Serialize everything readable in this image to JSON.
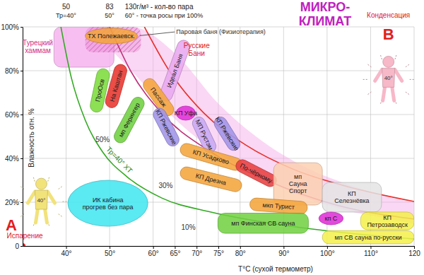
{
  "chart_data": {
    "type": "zone",
    "title": "МИКРО-\nКЛИМАТ",
    "x_label": "T°C (сухой термометр)",
    "y_label": "Влажность отн. %",
    "xlim": [
      30,
      120
    ],
    "ylim": [
      0,
      100
    ],
    "xticks": [
      {
        "value": 40,
        "label": "40°"
      },
      {
        "value": 50,
        "label": "50°"
      },
      {
        "value": 60,
        "label": "60°"
      },
      {
        "value": 65,
        "label": "65°"
      },
      {
        "value": 70,
        "label": "70°"
      },
      {
        "value": 75,
        "label": "75°"
      },
      {
        "value": 80,
        "label": "80°"
      },
      {
        "value": 90,
        "label": "90°"
      },
      {
        "value": 100,
        "label": "100°"
      },
      {
        "value": 110,
        "label": "110°"
      },
      120
    ],
    "yticks": [
      0,
      {
        "value": 20,
        "label": "20%"
      },
      {
        "value": 40,
        "label": "40%"
      },
      {
        "value": 60,
        "label": "60%"
      },
      {
        "value": 80,
        "label": "80%"
      },
      {
        "value": 100,
        "label": "100%"
      }
    ],
    "grid": true,
    "top_labels": [
      {
        "x": 40,
        "label": "50",
        "sublabel": "Тр=40°"
      },
      {
        "x": 50,
        "label": "83",
        "sublabel": "50°"
      },
      {
        "x": 60,
        "label": "130г/м³ - кол-во пара",
        "sublabel": "60° - точка росы при 100%"
      }
    ],
    "series": [
      {
        "type": "area",
        "color": "#f4a6e6",
        "x": [
          45,
          55,
          65,
          75,
          85,
          95,
          105,
          115,
          120
        ],
        "values": [
          100,
          100,
          88,
          65,
          48,
          36,
          28,
          22,
          20
        ],
        "lower": [
          100,
          80,
          58,
          42,
          31,
          22,
          16,
          12,
          10
        ]
      },
      {
        "type": "zone",
        "marker": "rect",
        "color": "#f6b4ee",
        "x": [
          37.2,
          51
        ],
        "values": [
          81.6,
          100
        ]
      },
      {
        "type": "zone",
        "marker": "hatch",
        "color": "#d860b8",
        "x": [
          44.4,
          57.2
        ],
        "values": [
          88.4,
          100
        ]
      },
      {
        "type": "line",
        "color": "#c0307a",
        "x": [
          50,
          54.8,
          62,
          73.3,
          86.1,
          102.1,
          120
        ],
        "values": [
          100,
          80,
          60.6,
          42.9,
          30,
          18.7,
          12.3
        ]
      },
      {
        "type": "line",
        "color": "#e8302a",
        "x": [
          58,
          63.7,
          71.7,
          81.3,
          92.5,
          105.3,
          120
        ],
        "values": [
          100,
          80,
          60.6,
          46.1,
          34.8,
          26.8,
          20.3
        ]
      },
      {
        "type": "line",
        "name": "Тр=40° ХТ",
        "color": "#33aa22",
        "x": [
          38.8,
          41.2,
          44.4,
          48.4,
          54,
          62,
          73.3,
          89.3,
          105.3,
          120
        ],
        "values": [
          100,
          76.8,
          57.4,
          42.9,
          31.6,
          21.9,
          15.5,
          9.7,
          5.8,
          3.2
        ]
      },
      {
        "type": "zone",
        "marker": "ellipse",
        "name": "ТХ Полежаевск.",
        "color": "#f5a53c",
        "x": [
          44.4,
          56.4
        ],
        "values": [
          92.3,
          99.4
        ]
      },
      {
        "type": "zone",
        "marker": "capsule",
        "name": "ПроОсв",
        "color": "#7ddc3c",
        "x": [
          47,
          48.5
        ],
        "values": [
          64,
          78
        ]
      },
      {
        "type": "zone",
        "marker": "capsule",
        "name": "На Каштан",
        "color": "#e8342e",
        "x": [
          50.5,
          52.5
        ],
        "values": [
          66,
          80
        ]
      },
      {
        "type": "zone",
        "marker": "capsule",
        "name": "мп Ферингер",
        "color": "#70d040",
        "x": [
          52.5,
          56.5
        ],
        "values": [
          50,
          65
        ]
      },
      {
        "type": "zone",
        "marker": "capsule",
        "name": "Идеал Баня",
        "color": "#e8a8f0",
        "x": [
          63,
          67
        ],
        "values": [
          69,
          91
        ]
      },
      {
        "type": "zone",
        "marker": "capsule",
        "name": "Пассаж",
        "color": "#f5a53c",
        "x": [
          59.2,
          63.3
        ],
        "values": [
          73.5,
          62.3
        ]
      },
      {
        "type": "zone",
        "marker": "capsule",
        "name": "КП Ржевские",
        "color": "#a094e8",
        "x": [
          61.5,
          64.5
        ],
        "values": [
          60,
          48.5
        ]
      },
      {
        "type": "zone",
        "marker": "ellipse",
        "name": "КП Уфа",
        "color": "#e030d8",
        "x": [
          65.3,
          69.7
        ],
        "values": [
          57.4,
          63.9
        ]
      },
      {
        "type": "zone",
        "marker": "capsule",
        "name": "МП Рустэм",
        "color": "#c8a8f4",
        "x": [
          70.5,
          73
        ],
        "values": [
          56,
          45.5
        ]
      },
      {
        "type": "zone",
        "marker": "capsule",
        "name": "КП Ржевские",
        "color": "#a094e8",
        "x": [
          75.5,
          78.5
        ],
        "values": [
          56,
          46.5
        ]
      },
      {
        "type": "zone",
        "marker": "capsule",
        "name": "КП Усадково",
        "color": "#f5a53c",
        "x": [
          67.7,
          78.9
        ],
        "values": [
          43.9,
          37.4
        ]
      },
      {
        "type": "zone",
        "marker": "capsule",
        "name": "КП Дрезна",
        "color": "#f5a53c",
        "x": [
          67.7,
          78.9
        ],
        "values": [
          33.2,
          27.7
        ]
      },
      {
        "type": "zone",
        "marker": "capsule",
        "name": "По-чёрному",
        "color": "#e84040",
        "x": [
          80.5,
          86.9
        ],
        "values": [
          36.5,
          30
        ]
      },
      {
        "type": "zone",
        "marker": "rect",
        "name": "мп\nСауна\nСпорт",
        "color": "#fbd0b0",
        "x": [
          87.7,
          98.9
        ],
        "values": [
          18.7,
          38
        ]
      },
      {
        "type": "zone",
        "marker": "rect",
        "name": "КП\nСелезнёвка",
        "color": "#e4e4e4",
        "x": [
          98.9,
          112.5
        ],
        "values": [
          15.5,
          29
        ]
      },
      {
        "type": "zone",
        "marker": "capsule",
        "name": "мкп Турист",
        "color": "#f5a53c",
        "x": [
          83.7,
          94
        ],
        "values": [
          19,
          17.5
        ]
      },
      {
        "type": "zone",
        "marker": "rect",
        "name": "мп Финская СВ сауна",
        "color": "#70d040",
        "x": [
          74.9,
          95.7
        ],
        "values": [
          5.8,
          15
        ]
      },
      {
        "type": "zone",
        "marker": "ellipse",
        "name": "кп С",
        "color": "#e030d8",
        "x": [
          98.1,
          103.7
        ],
        "values": [
          9.7,
          15.5
        ]
      },
      {
        "type": "zone",
        "marker": "rect",
        "name": "КП\nПетрозаводск",
        "color": "#f4f04a",
        "x": [
          107.7,
          120
        ],
        "values": [
          7.4,
          15.5
        ]
      },
      {
        "type": "zone",
        "marker": "rect",
        "name": "мп СВ сауна по-русски",
        "color": "#f4f04a",
        "x": [
          98.9,
          120
        ],
        "values": [
          1,
          7
        ]
      },
      {
        "type": "zone",
        "marker": "ellipse",
        "name": "ИК кабина\nпрогрев без пара",
        "color": "#44e6f0",
        "x": [
          40.4,
          58.8
        ],
        "values": [
          9,
          30
        ]
      },
      {
        "type": "scatter",
        "marker": "circle",
        "color": "#e02020",
        "x": [
          30
        ],
        "values": [
          0
        ]
      }
    ],
    "annotations": [
      {
        "text": "Турецкий\nхаммам",
        "x": 33.5,
        "y": 91,
        "color": "#d0308a"
      },
      {
        "text": "Паровая баня (Физиотерапия)",
        "x": 65.3,
        "y": 97.7,
        "color": "#333333",
        "point": [
          57,
          96
        ]
      },
      {
        "text": "Русские\nБани",
        "x": 70,
        "y": 89.7,
        "color": "#e02020"
      },
      {
        "text": "50%",
        "x": 48.4,
        "y": 48.7,
        "color": "#333333"
      },
      {
        "text": "30%",
        "x": 62.9,
        "y": 27.7,
        "color": "#333333"
      },
      {
        "text": "10%",
        "x": 68.1,
        "y": 8.4,
        "color": "#333333"
      },
      {
        "text": "Конденсация",
        "x": 114.1,
        "y": 105.2,
        "color": "#e02020"
      },
      {
        "text": "B",
        "x": 114.1,
        "y": 96.8,
        "color": "#e02020"
      },
      {
        "text": "A",
        "x": 27.4,
        "y": 9.7,
        "color": "#e02020"
      },
      {
        "text": "Испарение",
        "x": 30.5,
        "y": 4.8,
        "color": "#e02020"
      }
    ],
    "figures": [
      {
        "x": 34.3,
        "y": 20.3,
        "label": "40°",
        "color": "#f2e27a"
      },
      {
        "x": 114.1,
        "y": 76,
        "label": "40°",
        "color": "#f7b8c8"
      }
    ]
  }
}
